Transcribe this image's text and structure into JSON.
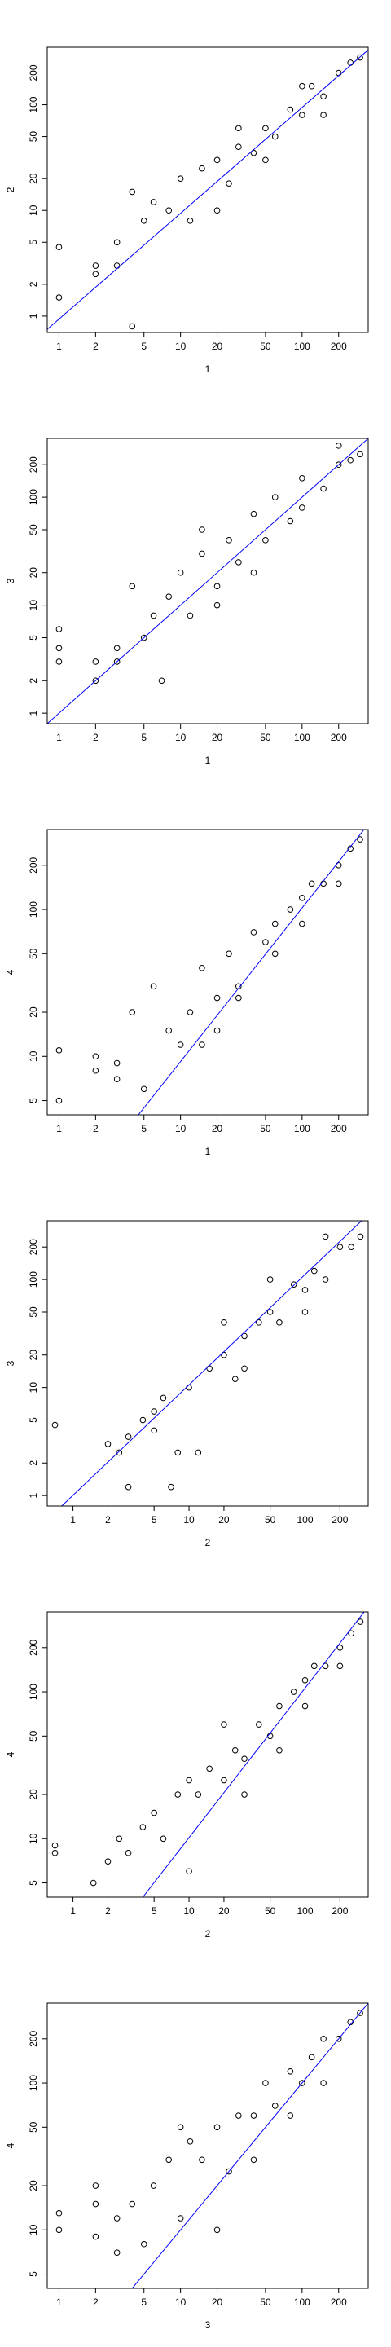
{
  "chart_data": [
    {
      "type": "scatter",
      "x_label": "1",
      "y_label": "2",
      "log_x": true,
      "log_y": true,
      "color": "#000000",
      "xlim": [
        0.8,
        350
      ],
      "ylim": [
        0.7,
        350
      ],
      "xticks": [
        1,
        2,
        5,
        10,
        20,
        50,
        100,
        200
      ],
      "yticks": [
        1,
        2,
        5,
        10,
        20,
        50,
        100,
        200
      ],
      "x": [
        1,
        1,
        2,
        2,
        3,
        3,
        4,
        4,
        5,
        6,
        8,
        10,
        12,
        15,
        20,
        25,
        30,
        40,
        50,
        60,
        80,
        100,
        120,
        150,
        200,
        250,
        300,
        20,
        30,
        50,
        100,
        150
      ],
      "y": [
        4.5,
        1.5,
        3,
        2.5,
        5,
        3,
        15,
        0.8,
        8,
        12,
        10,
        20,
        8,
        25,
        30,
        18,
        40,
        35,
        60,
        50,
        90,
        80,
        150,
        120,
        200,
        250,
        280,
        10,
        60,
        30,
        150,
        80
      ],
      "fit_line": {
        "color": "#0000ff",
        "x": [
          0.8,
          350
        ],
        "y": [
          0.75,
          330
        ]
      }
    },
    {
      "type": "scatter",
      "x_label": "1",
      "y_label": "3",
      "log_x": true,
      "log_y": true,
      "color": "#000000",
      "xlim": [
        0.8,
        350
      ],
      "ylim": [
        0.8,
        350
      ],
      "xticks": [
        1,
        2,
        5,
        10,
        20,
        50,
        100,
        200
      ],
      "yticks": [
        1,
        2,
        5,
        10,
        20,
        50,
        100,
        200
      ],
      "x": [
        1,
        1,
        1,
        2,
        2,
        3,
        3,
        4,
        5,
        6,
        7,
        8,
        10,
        12,
        15,
        20,
        25,
        30,
        40,
        50,
        60,
        80,
        100,
        150,
        200,
        250,
        300,
        15,
        20,
        40,
        100,
        200
      ],
      "y": [
        6,
        4,
        3,
        3,
        2,
        4,
        3,
        15,
        5,
        8,
        2,
        12,
        20,
        8,
        30,
        15,
        40,
        25,
        70,
        40,
        100,
        60,
        150,
        120,
        200,
        220,
        250,
        50,
        10,
        20,
        80,
        300
      ],
      "fit_line": {
        "color": "#0000ff",
        "x": [
          0.8,
          350
        ],
        "y": [
          0.8,
          350
        ]
      }
    },
    {
      "type": "scatter",
      "x_label": "1",
      "y_label": "4",
      "log_x": true,
      "log_y": true,
      "color": "#000000",
      "xlim": [
        0.8,
        350
      ],
      "ylim": [
        4,
        350
      ],
      "xticks": [
        1,
        2,
        5,
        10,
        20,
        50,
        100,
        200
      ],
      "yticks": [
        5,
        10,
        20,
        50,
        100,
        200
      ],
      "x": [
        1,
        1,
        2,
        2,
        3,
        3,
        4,
        5,
        6,
        8,
        10,
        12,
        15,
        20,
        25,
        30,
        40,
        50,
        60,
        80,
        100,
        120,
        150,
        200,
        250,
        300,
        15,
        20,
        30,
        60,
        100,
        200
      ],
      "y": [
        11,
        5,
        10,
        8,
        9,
        7,
        20,
        6,
        30,
        15,
        12,
        20,
        40,
        25,
        50,
        30,
        70,
        60,
        80,
        100,
        120,
        150,
        150,
        200,
        260,
        300,
        12,
        15,
        25,
        50,
        80,
        150
      ],
      "fit_line": {
        "color": "#0000ff",
        "x": [
          4.5,
          350
        ],
        "y": [
          4,
          380
        ]
      }
    },
    {
      "type": "scatter",
      "x_label": "2",
      "y_label": "3",
      "log_x": true,
      "log_y": true,
      "color": "#000000",
      "xlim": [
        0.6,
        350
      ],
      "ylim": [
        0.8,
        350
      ],
      "xticks": [
        1,
        2,
        5,
        10,
        20,
        50,
        100,
        200
      ],
      "yticks": [
        1,
        2,
        5,
        10,
        20,
        50,
        100,
        200
      ],
      "x": [
        0.7,
        2,
        2.5,
        3,
        3,
        4,
        5,
        5,
        6,
        7,
        8,
        10,
        12,
        15,
        20,
        25,
        30,
        40,
        50,
        60,
        80,
        100,
        120,
        150,
        200,
        250,
        300,
        20,
        30,
        50,
        100,
        150
      ],
      "y": [
        4.5,
        3,
        2.5,
        1.2,
        3.5,
        5,
        6,
        4,
        8,
        1.2,
        2.5,
        10,
        2.5,
        15,
        20,
        12,
        30,
        40,
        50,
        40,
        90,
        80,
        120,
        100,
        200,
        200,
        250,
        40,
        15,
        100,
        50,
        250
      ],
      "fit_line": {
        "color": "#0000ff",
        "x": [
          0.8,
          350
        ],
        "y": [
          0.8,
          400
        ]
      }
    },
    {
      "type": "scatter",
      "x_label": "2",
      "y_label": "4",
      "log_x": true,
      "log_y": true,
      "color": "#000000",
      "xlim": [
        0.6,
        350
      ],
      "ylim": [
        4,
        350
      ],
      "xticks": [
        1,
        2,
        5,
        10,
        20,
        50,
        100,
        200
      ],
      "yticks": [
        5,
        10,
        20,
        50,
        100,
        200
      ],
      "x": [
        0.7,
        0.7,
        1.5,
        2,
        2.5,
        3,
        4,
        5,
        6,
        8,
        10,
        10,
        12,
        15,
        20,
        25,
        30,
        40,
        50,
        60,
        80,
        100,
        120,
        150,
        200,
        250,
        300,
        20,
        30,
        60,
        100,
        200
      ],
      "y": [
        9,
        8,
        5,
        7,
        10,
        8,
        12,
        15,
        10,
        20,
        6,
        25,
        20,
        30,
        25,
        40,
        35,
        60,
        50,
        80,
        100,
        120,
        150,
        150,
        200,
        250,
        300,
        60,
        20,
        40,
        80,
        150
      ],
      "fit_line": {
        "color": "#0000ff",
        "x": [
          4,
          350
        ],
        "y": [
          4,
          380
        ]
      }
    },
    {
      "type": "scatter",
      "x_label": "3",
      "y_label": "4",
      "log_x": true,
      "log_y": true,
      "color": "#000000",
      "xlim": [
        0.8,
        350
      ],
      "ylim": [
        4,
        350
      ],
      "xticks": [
        1,
        2,
        5,
        10,
        20,
        50,
        100,
        200
      ],
      "yticks": [
        5,
        10,
        20,
        50,
        100,
        200
      ],
      "x": [
        1,
        1,
        2,
        2,
        2,
        3,
        3,
        4,
        5,
        6,
        8,
        10,
        12,
        15,
        20,
        25,
        30,
        40,
        50,
        60,
        80,
        100,
        120,
        150,
        200,
        250,
        300,
        10,
        20,
        40,
        80,
        150
      ],
      "y": [
        13,
        10,
        20,
        15,
        9,
        12,
        7,
        15,
        8,
        20,
        30,
        12,
        40,
        30,
        50,
        25,
        60,
        60,
        100,
        70,
        120,
        100,
        150,
        200,
        200,
        260,
        300,
        50,
        10,
        30,
        60,
        100
      ],
      "fit_line": {
        "color": "#0000ff",
        "x": [
          4,
          350
        ],
        "y": [
          4,
          350
        ]
      }
    }
  ]
}
